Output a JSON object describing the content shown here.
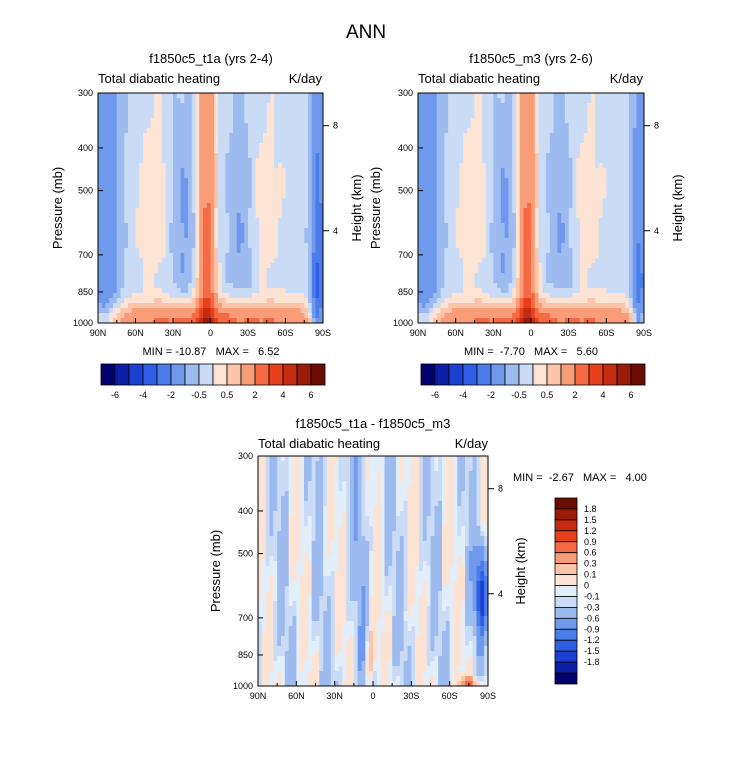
{
  "figure_title": "ANN",
  "colors": {
    "main_palette": [
      "#03006e",
      "#0b1fa6",
      "#1b40d2",
      "#2e5fe6",
      "#4a7de9",
      "#6f99ec",
      "#9dbbef",
      "#cadcf5",
      "#fde3d3",
      "#fcc4a8",
      "#f99c78",
      "#f56a45",
      "#e8401c",
      "#c42a0f",
      "#9a1b08",
      "#6b0d03"
    ],
    "diff_palette": [
      "#03006e",
      "#0b1fa6",
      "#1b40d2",
      "#2e5fe6",
      "#4a7de9",
      "#6f99ec",
      "#9dbbef",
      "#cadcf5",
      "#e3eefb",
      "#fde3d3",
      "#fcc4a8",
      "#f99c78",
      "#f56a45",
      "#e8401c",
      "#c42a0f",
      "#9a1b08",
      "#6b0d03"
    ]
  },
  "chart_data": [
    {
      "id": "panel1",
      "type": "heatmap",
      "title": "f1850c5_t1a (yrs 2-4)",
      "left_label": "Total diabatic heating",
      "right_label": "K/day",
      "xlabel": "",
      "ylabel": "Pressure (mb)",
      "y2label": "Height (km)",
      "x_ticks": [
        "90N",
        "60N",
        "30N",
        "0",
        "30S",
        "60S",
        "90S"
      ],
      "x_range": [
        90,
        -90
      ],
      "y_ticks": [
        "300",
        "400",
        "500",
        "700",
        "850",
        "1000"
      ],
      "y_tick_values": [
        300,
        400,
        500,
        700,
        850,
        1000
      ],
      "y_range": [
        300,
        1000
      ],
      "y2_ticks": [
        "8",
        "4"
      ],
      "y2_tick_pressures": [
        356,
        617
      ],
      "min": -10.87,
      "max": 6.52,
      "stats_text": "MIN = -10.87   MAX =   6.52",
      "colorbar_labels": [
        "-6",
        "-4",
        "-2",
        "-0.5",
        "0.5",
        "2",
        "4",
        "6"
      ],
      "variant": 1
    },
    {
      "id": "panel2",
      "type": "heatmap",
      "title": "f1850c5_m3 (yrs 2-6)",
      "left_label": "Total diabatic heating",
      "right_label": "K/day",
      "xlabel": "",
      "ylabel": "Pressure (mb)",
      "y2label": "Height (km)",
      "x_ticks": [
        "90N",
        "60N",
        "30N",
        "0",
        "30S",
        "60S",
        "90S"
      ],
      "x_range": [
        90,
        -90
      ],
      "y_ticks": [
        "300",
        "400",
        "500",
        "700",
        "850",
        "1000"
      ],
      "y_tick_values": [
        300,
        400,
        500,
        700,
        850,
        1000
      ],
      "y_range": [
        300,
        1000
      ],
      "y2_ticks": [
        "8",
        "4"
      ],
      "y2_tick_pressures": [
        356,
        617
      ],
      "min": -7.7,
      "max": 5.6,
      "stats_text": "MIN =  -7.70   MAX =   5.60",
      "colorbar_labels": [
        "-6",
        "-4",
        "-2",
        "-0.5",
        "0.5",
        "2",
        "4",
        "6"
      ],
      "variant": 2
    },
    {
      "id": "panel3",
      "type": "heatmap",
      "title": "f1850c5_t1a - f1850c5_m3",
      "left_label": "Total diabatic heating",
      "right_label": "K/day",
      "xlabel": "",
      "ylabel": "Pressure (mb)",
      "y2label": "Height (km)",
      "x_ticks": [
        "90N",
        "60N",
        "30N",
        "0",
        "30S",
        "60S",
        "90S"
      ],
      "x_range": [
        90,
        -90
      ],
      "y_ticks": [
        "300",
        "400",
        "500",
        "700",
        "850",
        "1000"
      ],
      "y_tick_values": [
        300,
        400,
        500,
        700,
        850,
        1000
      ],
      "y_range": [
        300,
        1000
      ],
      "y2_ticks": [
        "8",
        "4"
      ],
      "y2_tick_pressures": [
        356,
        617
      ],
      "min": -2.67,
      "max": 4.0,
      "stats_text": "MIN =  -2.67   MAX =   4.00",
      "colorbar_labels": [
        "1.8",
        "1.5",
        "1.2",
        "0.9",
        "0.6",
        "0.3",
        "0.1",
        "0",
        "-0.1",
        "-0.3",
        "-0.6",
        "-0.9",
        "-1.2",
        "-1.5",
        "-1.8"
      ],
      "variant": 3
    }
  ]
}
